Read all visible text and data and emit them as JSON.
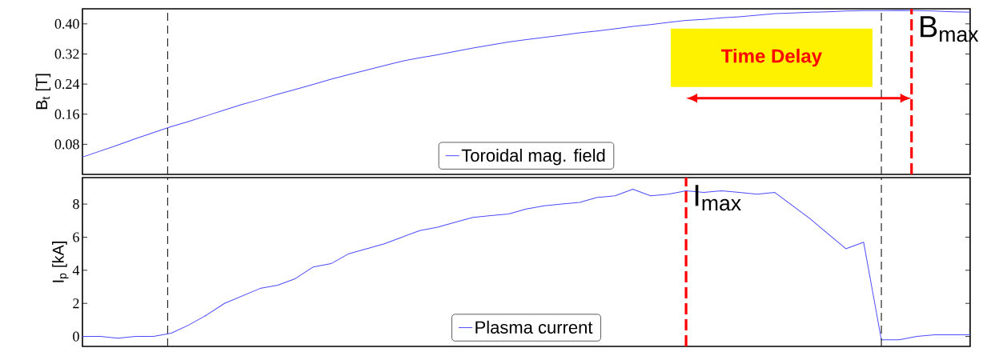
{
  "chart_data": [
    {
      "type": "line",
      "categories": [
        null,
        null,
        null,
        null,
        null,
        null,
        null,
        null,
        null,
        null,
        null,
        null,
        null,
        null,
        null,
        null,
        null,
        null,
        null,
        null,
        null,
        null,
        null,
        null,
        null,
        null,
        null,
        null,
        null,
        null,
        null,
        null,
        null,
        null,
        null,
        null,
        null,
        null,
        null,
        null,
        null,
        null,
        null,
        null,
        null,
        null,
        null,
        null,
        null,
        null,
        null
      ],
      "series": [
        {
          "name": "Toroidal mag. field",
          "color": "#4c4cff",
          "values": [
            0.046,
            0.062,
            0.078,
            0.095,
            0.111,
            0.127,
            0.141,
            0.156,
            0.171,
            0.186,
            0.199,
            0.213,
            0.226,
            0.239,
            0.253,
            0.265,
            0.277,
            0.289,
            0.301,
            0.31,
            0.318,
            0.327,
            0.336,
            0.344,
            0.352,
            0.358,
            0.364,
            0.37,
            0.376,
            0.381,
            0.387,
            0.393,
            0.398,
            0.404,
            0.409,
            0.412,
            0.416,
            0.419,
            0.423,
            0.427,
            0.429,
            0.431,
            0.432,
            0.434,
            0.435,
            0.435,
            0.436,
            0.435,
            0.434,
            0.432,
            0.431
          ]
        }
      ],
      "ylabel": "B$_{t}$ [T]",
      "ylim": [
        0,
        0.44
      ],
      "yticks": [
        0.08,
        0.16,
        0.24,
        0.32,
        {
          "value": 0.4,
          "label": "0.40"
        }
      ],
      "legend": "bottom",
      "tick_labels": "y",
      "annotations": [
        "Time Delay",
        "B$_{max}$"
      ]
    },
    {
      "type": "line",
      "categories": [
        null,
        null,
        null,
        null,
        null,
        null,
        null,
        null,
        null,
        null,
        null,
        null,
        null,
        null,
        null,
        null,
        null,
        null,
        null,
        null,
        null,
        null,
        null,
        null,
        null,
        null,
        null,
        null,
        null,
        null,
        null,
        null,
        null,
        null,
        null,
        null,
        null,
        null,
        null,
        null,
        null,
        null,
        null,
        null,
        null,
        null,
        null,
        null,
        null,
        null,
        null
      ],
      "series": [
        {
          "name": "Plasma current",
          "color": "#4c4cff",
          "values": [
            0,
            0,
            -0.1,
            0,
            0,
            0.2,
            0.7,
            1.3,
            2.0,
            2.45,
            2.9,
            3.1,
            3.5,
            4.2,
            4.4,
            5.0,
            5.3,
            5.6,
            6.0,
            6.4,
            6.6,
            6.9,
            7.2,
            7.3,
            7.4,
            7.7,
            7.9,
            8.0,
            8.1,
            8.4,
            8.5,
            8.9,
            8.5,
            8.6,
            8.8,
            8.7,
            8.8,
            8.7,
            8.6,
            8.7,
            7.9,
            7.1,
            6.2,
            5.3,
            5.7,
            -0.2,
            -0.2,
            0.0,
            0.1,
            0.1,
            0.1
          ]
        }
      ],
      "ylabel": "I$_{p}$ [kA]",
      "ylim": [
        -0.6,
        9.6
      ],
      "yticks": [
        0,
        2,
        4,
        6,
        8
      ],
      "legend": "bottom",
      "tick_labels": "y",
      "annotations": [
        "I$_{max}$"
      ]
    }
  ]
}
